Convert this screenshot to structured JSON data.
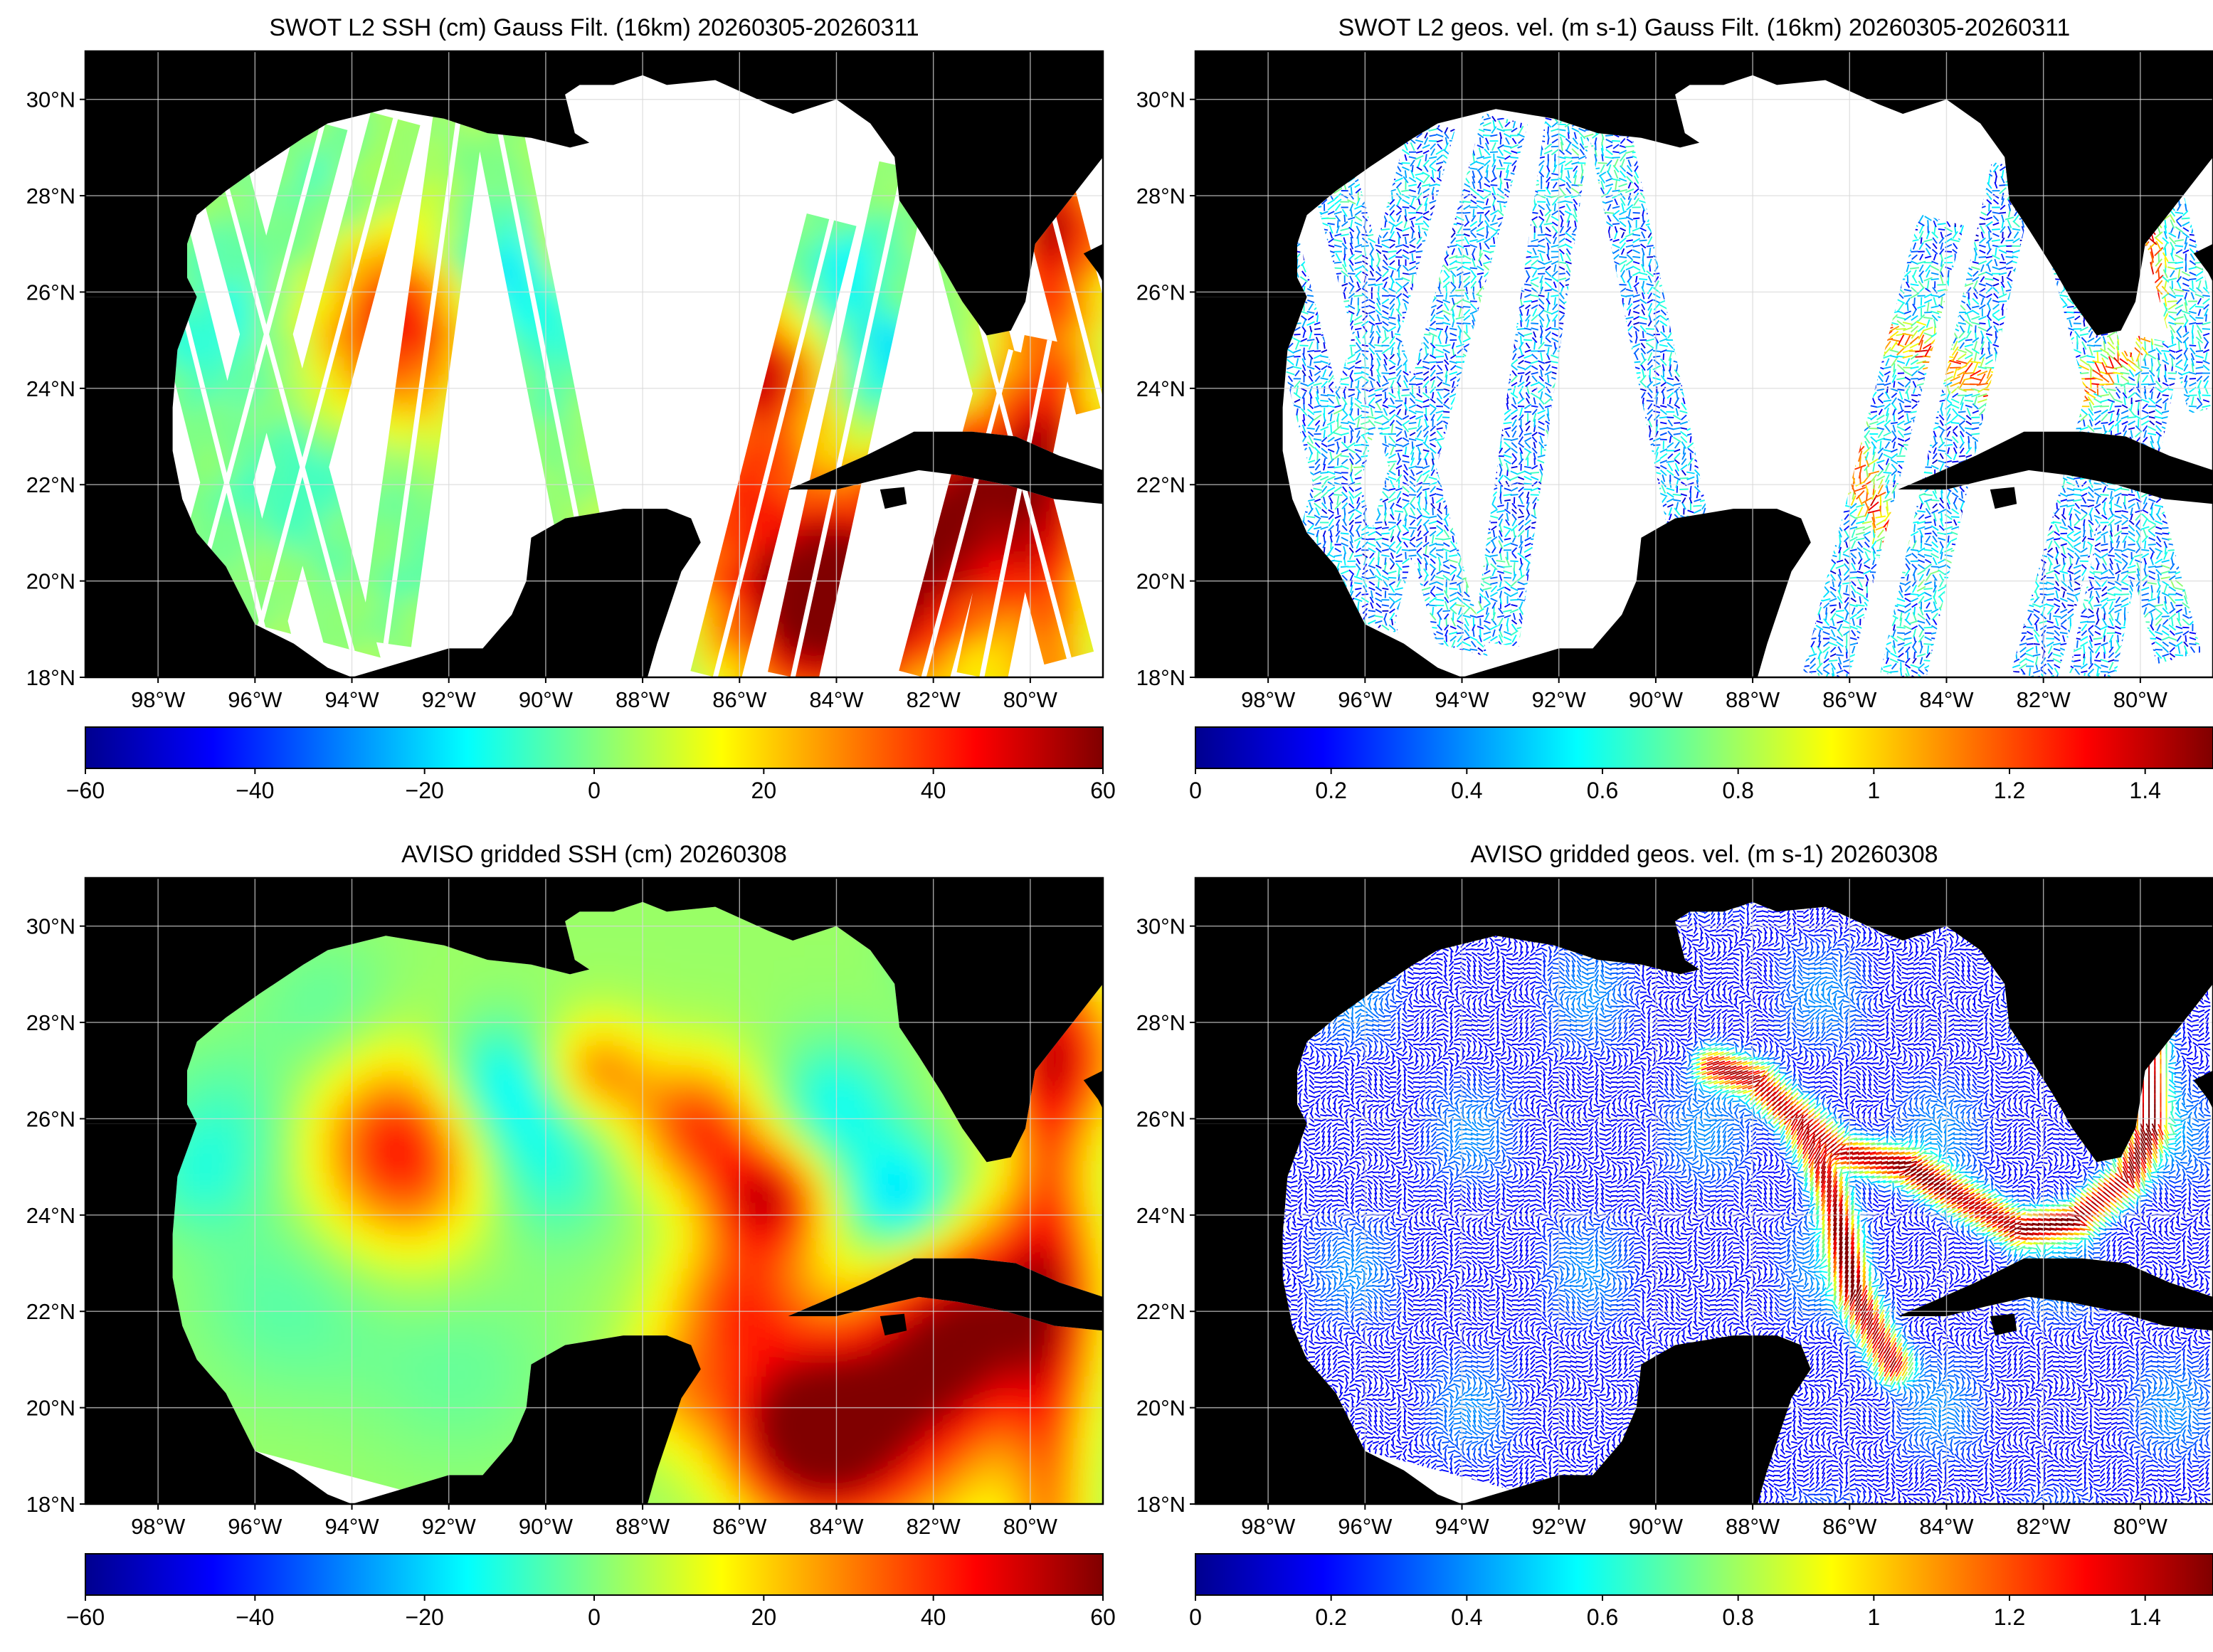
{
  "panels": [
    {
      "id": "swot-ssh",
      "title": "SWOT L2 SSH (cm) Gauss Filt. (16km) 20260305-20260311",
      "field": "ssh-swaths",
      "colorbar": {
        "ticks": [
          "-60",
          "-40",
          "-20",
          "0",
          "20",
          "40",
          "60"
        ],
        "min": -60,
        "max": 60
      }
    },
    {
      "id": "swot-vel",
      "title": "SWOT L2 geos. vel. (m s-1) Gauss Filt. (16km) 20260305-20260311",
      "field": "vel-swaths",
      "colorbar": {
        "ticks": [
          "0",
          "0.2",
          "0.4",
          "0.6",
          "0.8",
          "1",
          "1.2",
          "1.4"
        ],
        "min": 0,
        "max": 1.5
      }
    },
    {
      "id": "aviso-ssh",
      "title": "AVISO gridded SSH (cm) 20260308",
      "field": "ssh-gridded",
      "colorbar": {
        "ticks": [
          "-60",
          "-40",
          "-20",
          "0",
          "20",
          "40",
          "60"
        ],
        "min": -60,
        "max": 60
      }
    },
    {
      "id": "aviso-vel",
      "title": "AVISO gridded geos. vel. (m s-1)  20260308",
      "field": "vel-gridded",
      "colorbar": {
        "ticks": [
          "0",
          "0.2",
          "0.4",
          "0.6",
          "0.8",
          "1",
          "1.2",
          "1.4"
        ],
        "min": 0,
        "max": 1.5
      }
    }
  ],
  "map_extent": {
    "lon_min": -99.5,
    "lon_max": -78.5,
    "lat_min": 18,
    "lat_max": 31
  },
  "lat_ticks": [
    {
      "value": 30,
      "label": "30°N"
    },
    {
      "value": 28,
      "label": "28°N"
    },
    {
      "value": 26,
      "label": "26°N"
    },
    {
      "value": 24,
      "label": "24°N"
    },
    {
      "value": 22,
      "label": "22°N"
    },
    {
      "value": 20,
      "label": "20°N"
    },
    {
      "value": 18,
      "label": "18°N"
    }
  ],
  "lon_ticks": [
    {
      "value": -98,
      "label": "98°W"
    },
    {
      "value": -96,
      "label": "96°W"
    },
    {
      "value": -94,
      "label": "94°W"
    },
    {
      "value": -92,
      "label": "92°W"
    },
    {
      "value": -90,
      "label": "90°W"
    },
    {
      "value": -88,
      "label": "88°W"
    },
    {
      "value": -86,
      "label": "86°W"
    },
    {
      "value": -84,
      "label": "84°W"
    },
    {
      "value": -82,
      "label": "82°W"
    },
    {
      "value": -80,
      "label": "80°W"
    }
  ],
  "colormap": "jet",
  "land_color": "#000000",
  "gridline_color": "#d9d9d9"
}
